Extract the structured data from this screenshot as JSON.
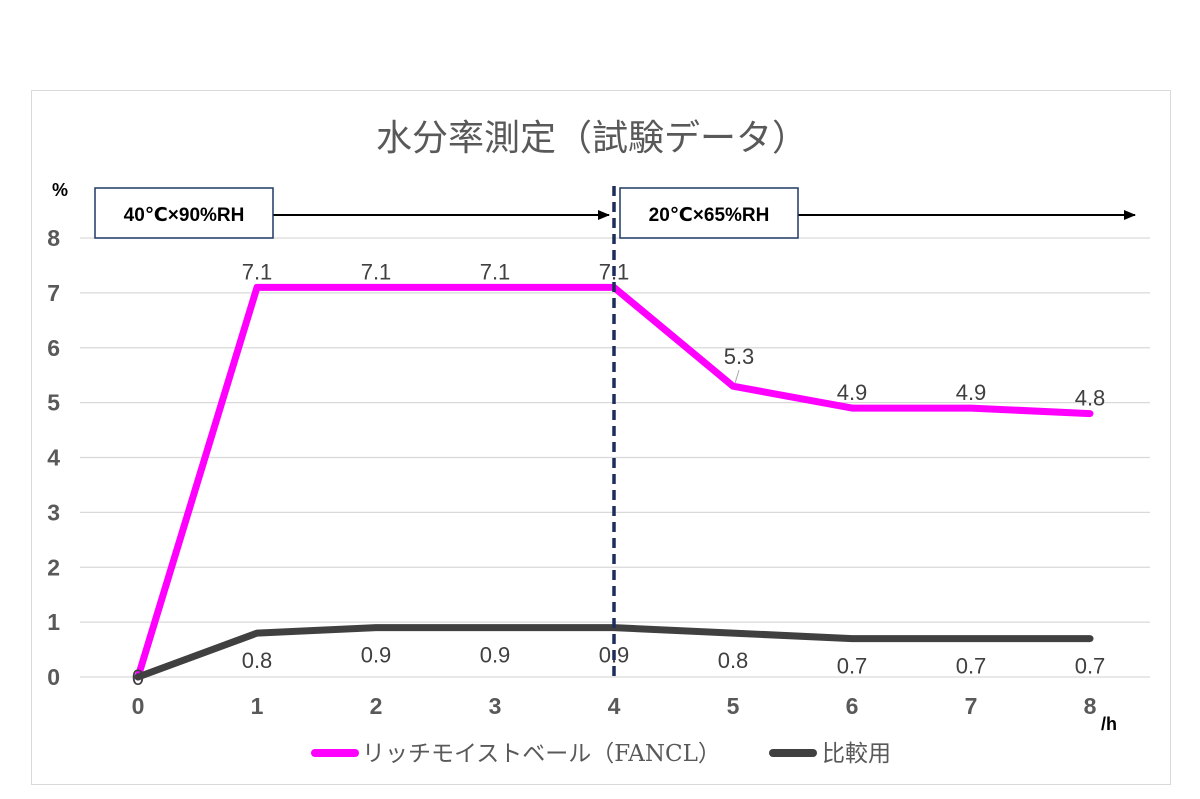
{
  "chart_data": {
    "type": "line",
    "title": "水分率測定（試験データ）",
    "y_unit": "%",
    "x_unit": "/h",
    "x": [
      0,
      1,
      2,
      3,
      4,
      5,
      6,
      7,
      8
    ],
    "xlim": [
      0,
      8
    ],
    "ylim": [
      0,
      8
    ],
    "y_ticks": [
      0,
      1,
      2,
      3,
      4,
      5,
      6,
      7,
      8
    ],
    "grid": true,
    "legend_position": "bottom",
    "series": [
      {
        "name": "リッチモイストベール（FANCL）",
        "color": "#ff00ff",
        "values": [
          0,
          7.1,
          7.1,
          7.1,
          7.1,
          5.3,
          4.9,
          4.9,
          4.8
        ],
        "labels": [
          "0",
          "7.1",
          "7.1",
          "7.1",
          "7.1",
          "5.3",
          "4.9",
          "4.9",
          "4.8"
        ]
      },
      {
        "name": "比較用",
        "color": "#404040",
        "values": [
          0,
          0.8,
          0.9,
          0.9,
          0.9,
          0.8,
          0.7,
          0.7,
          0.7
        ],
        "labels": [
          "0",
          "0.8",
          "0.9",
          "0.9",
          "0.9",
          "0.8",
          "0.7",
          "0.7",
          "0.7"
        ]
      }
    ],
    "phases": [
      {
        "label": "40℃×90%RH",
        "start": 0,
        "end": 4
      },
      {
        "label": "20℃×65%RH",
        "start": 4,
        "end": 8.4
      }
    ],
    "divider_x": 4
  }
}
